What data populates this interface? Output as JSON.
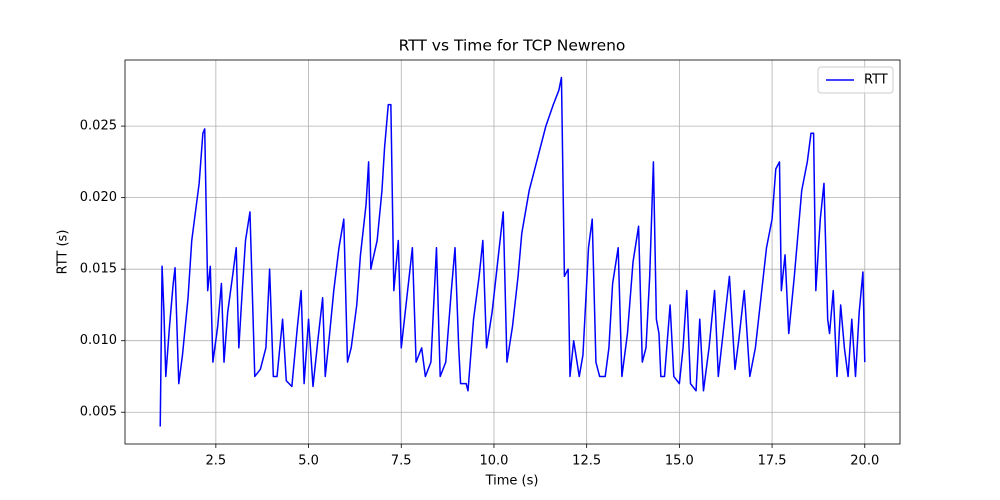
{
  "chart_data": {
    "type": "line",
    "title": "RTT vs Time for TCP Newreno",
    "x_label": "Time (s)",
    "y_label": "RTT (s)",
    "xlim": [
      0.05,
      20.95
    ],
    "ylim": [
      0.00278,
      0.02962
    ],
    "xticks": [
      2.5,
      {
        "value": 5,
        "label": "5.0"
      },
      7.5,
      {
        "value": 10,
        "label": "10.0"
      },
      12.5,
      {
        "value": 15,
        "label": "15.0"
      },
      17.5,
      {
        "value": 20,
        "label": "20.0"
      }
    ],
    "yticks": [
      0.005,
      {
        "value": 0.01,
        "label": "0.010"
      },
      0.015,
      {
        "value": 0.02,
        "label": "0.020"
      },
      0.025
    ],
    "grid": true,
    "legend": "upper right",
    "x": [
      1.0,
      1.05,
      1.1,
      1.15,
      1.25,
      1.35,
      1.4,
      1.5,
      1.6,
      1.75,
      1.85,
      1.95,
      2.05,
      2.15,
      2.2,
      2.28,
      2.35,
      2.42,
      2.55,
      2.65,
      2.72,
      2.82,
      2.95,
      3.05,
      3.12,
      3.2,
      3.3,
      3.42,
      3.55,
      3.7,
      3.85,
      3.95,
      4.05,
      4.15,
      4.3,
      4.4,
      4.55,
      4.7,
      4.8,
      4.88,
      5.0,
      5.12,
      5.25,
      5.38,
      5.45,
      5.55,
      5.68,
      5.82,
      5.95,
      6.05,
      6.15,
      6.3,
      6.4,
      6.55,
      6.62,
      6.68,
      6.72,
      6.85,
      6.98,
      7.05,
      7.15,
      7.22,
      7.3,
      7.42,
      7.5,
      7.65,
      7.8,
      7.9,
      8.05,
      8.15,
      8.3,
      8.45,
      8.55,
      8.7,
      8.85,
      8.95,
      9.05,
      9.1,
      9.25,
      9.3,
      9.45,
      9.6,
      9.7,
      9.8,
      9.95,
      10.1,
      10.25,
      10.35,
      10.5,
      10.65,
      10.75,
      10.85,
      10.95,
      11.1,
      11.25,
      11.4,
      11.6,
      11.75,
      11.82,
      11.9,
      12.0,
      12.05,
      12.15,
      12.3,
      12.4,
      12.55,
      12.65,
      12.75,
      12.85,
      13.0,
      13.1,
      13.2,
      13.35,
      13.45,
      13.6,
      13.75,
      13.9,
      14.0,
      14.1,
      14.2,
      14.3,
      14.38,
      14.45,
      14.5,
      14.6,
      14.75,
      14.85,
      15.0,
      15.1,
      15.2,
      15.3,
      15.45,
      15.55,
      15.65,
      15.8,
      15.95,
      16.05,
      16.2,
      16.35,
      16.5,
      16.6,
      16.75,
      16.9,
      17.05,
      17.2,
      17.35,
      17.5,
      17.6,
      17.7,
      17.75,
      17.85,
      17.95,
      18.1,
      18.2,
      18.3,
      18.45,
      18.55,
      18.62,
      18.68,
      18.8,
      18.9,
      19.0,
      19.05,
      19.15,
      19.25,
      19.35,
      19.45,
      19.55,
      19.65,
      19.75,
      19.85,
      19.95,
      20.0
    ],
    "series": [
      {
        "name": "RTT",
        "color": "blue",
        "values": [
          0.004,
          0.0152,
          0.012,
          0.0075,
          0.011,
          0.014,
          0.0151,
          0.007,
          0.009,
          0.013,
          0.017,
          0.019,
          0.021,
          0.0245,
          0.0248,
          0.0135,
          0.0152,
          0.0085,
          0.011,
          0.014,
          0.0085,
          0.012,
          0.0145,
          0.0165,
          0.0095,
          0.013,
          0.017,
          0.019,
          0.0075,
          0.008,
          0.0095,
          0.015,
          0.0075,
          0.0075,
          0.0115,
          0.0072,
          0.0068,
          0.011,
          0.0135,
          0.007,
          0.0115,
          0.0068,
          0.01,
          0.013,
          0.0075,
          0.01,
          0.0135,
          0.0165,
          0.0185,
          0.0085,
          0.0095,
          0.0125,
          0.016,
          0.0195,
          0.0225,
          0.015,
          0.0155,
          0.017,
          0.0205,
          0.0235,
          0.0265,
          0.0265,
          0.0135,
          0.017,
          0.0095,
          0.013,
          0.0165,
          0.0085,
          0.0095,
          0.0075,
          0.0085,
          0.0165,
          0.0075,
          0.0085,
          0.0135,
          0.0165,
          0.0095,
          0.007,
          0.007,
          0.0065,
          0.0115,
          0.0145,
          0.017,
          0.0095,
          0.012,
          0.0155,
          0.019,
          0.0085,
          0.011,
          0.0145,
          0.0175,
          0.019,
          0.0205,
          0.022,
          0.0235,
          0.025,
          0.0265,
          0.0275,
          0.0284,
          0.0145,
          0.015,
          0.0075,
          0.01,
          0.0075,
          0.009,
          0.0165,
          0.0185,
          0.0085,
          0.0075,
          0.0075,
          0.0095,
          0.014,
          0.0165,
          0.0075,
          0.0105,
          0.0155,
          0.018,
          0.0085,
          0.0095,
          0.0145,
          0.0225,
          0.0115,
          0.0105,
          0.0075,
          0.0075,
          0.0125,
          0.0075,
          0.007,
          0.0095,
          0.0135,
          0.007,
          0.0065,
          0.0115,
          0.0065,
          0.0095,
          0.0135,
          0.0075,
          0.011,
          0.0145,
          0.008,
          0.01,
          0.0135,
          0.0075,
          0.0095,
          0.013,
          0.0165,
          0.0185,
          0.022,
          0.0225,
          0.0135,
          0.016,
          0.0105,
          0.0145,
          0.0175,
          0.0205,
          0.0225,
          0.0245,
          0.0245,
          0.0135,
          0.0185,
          0.021,
          0.0115,
          0.0105,
          0.0135,
          0.0075,
          0.0125,
          0.0095,
          0.0075,
          0.0115,
          0.0075,
          0.012,
          0.0148,
          0.0085
        ]
      }
    ]
  }
}
